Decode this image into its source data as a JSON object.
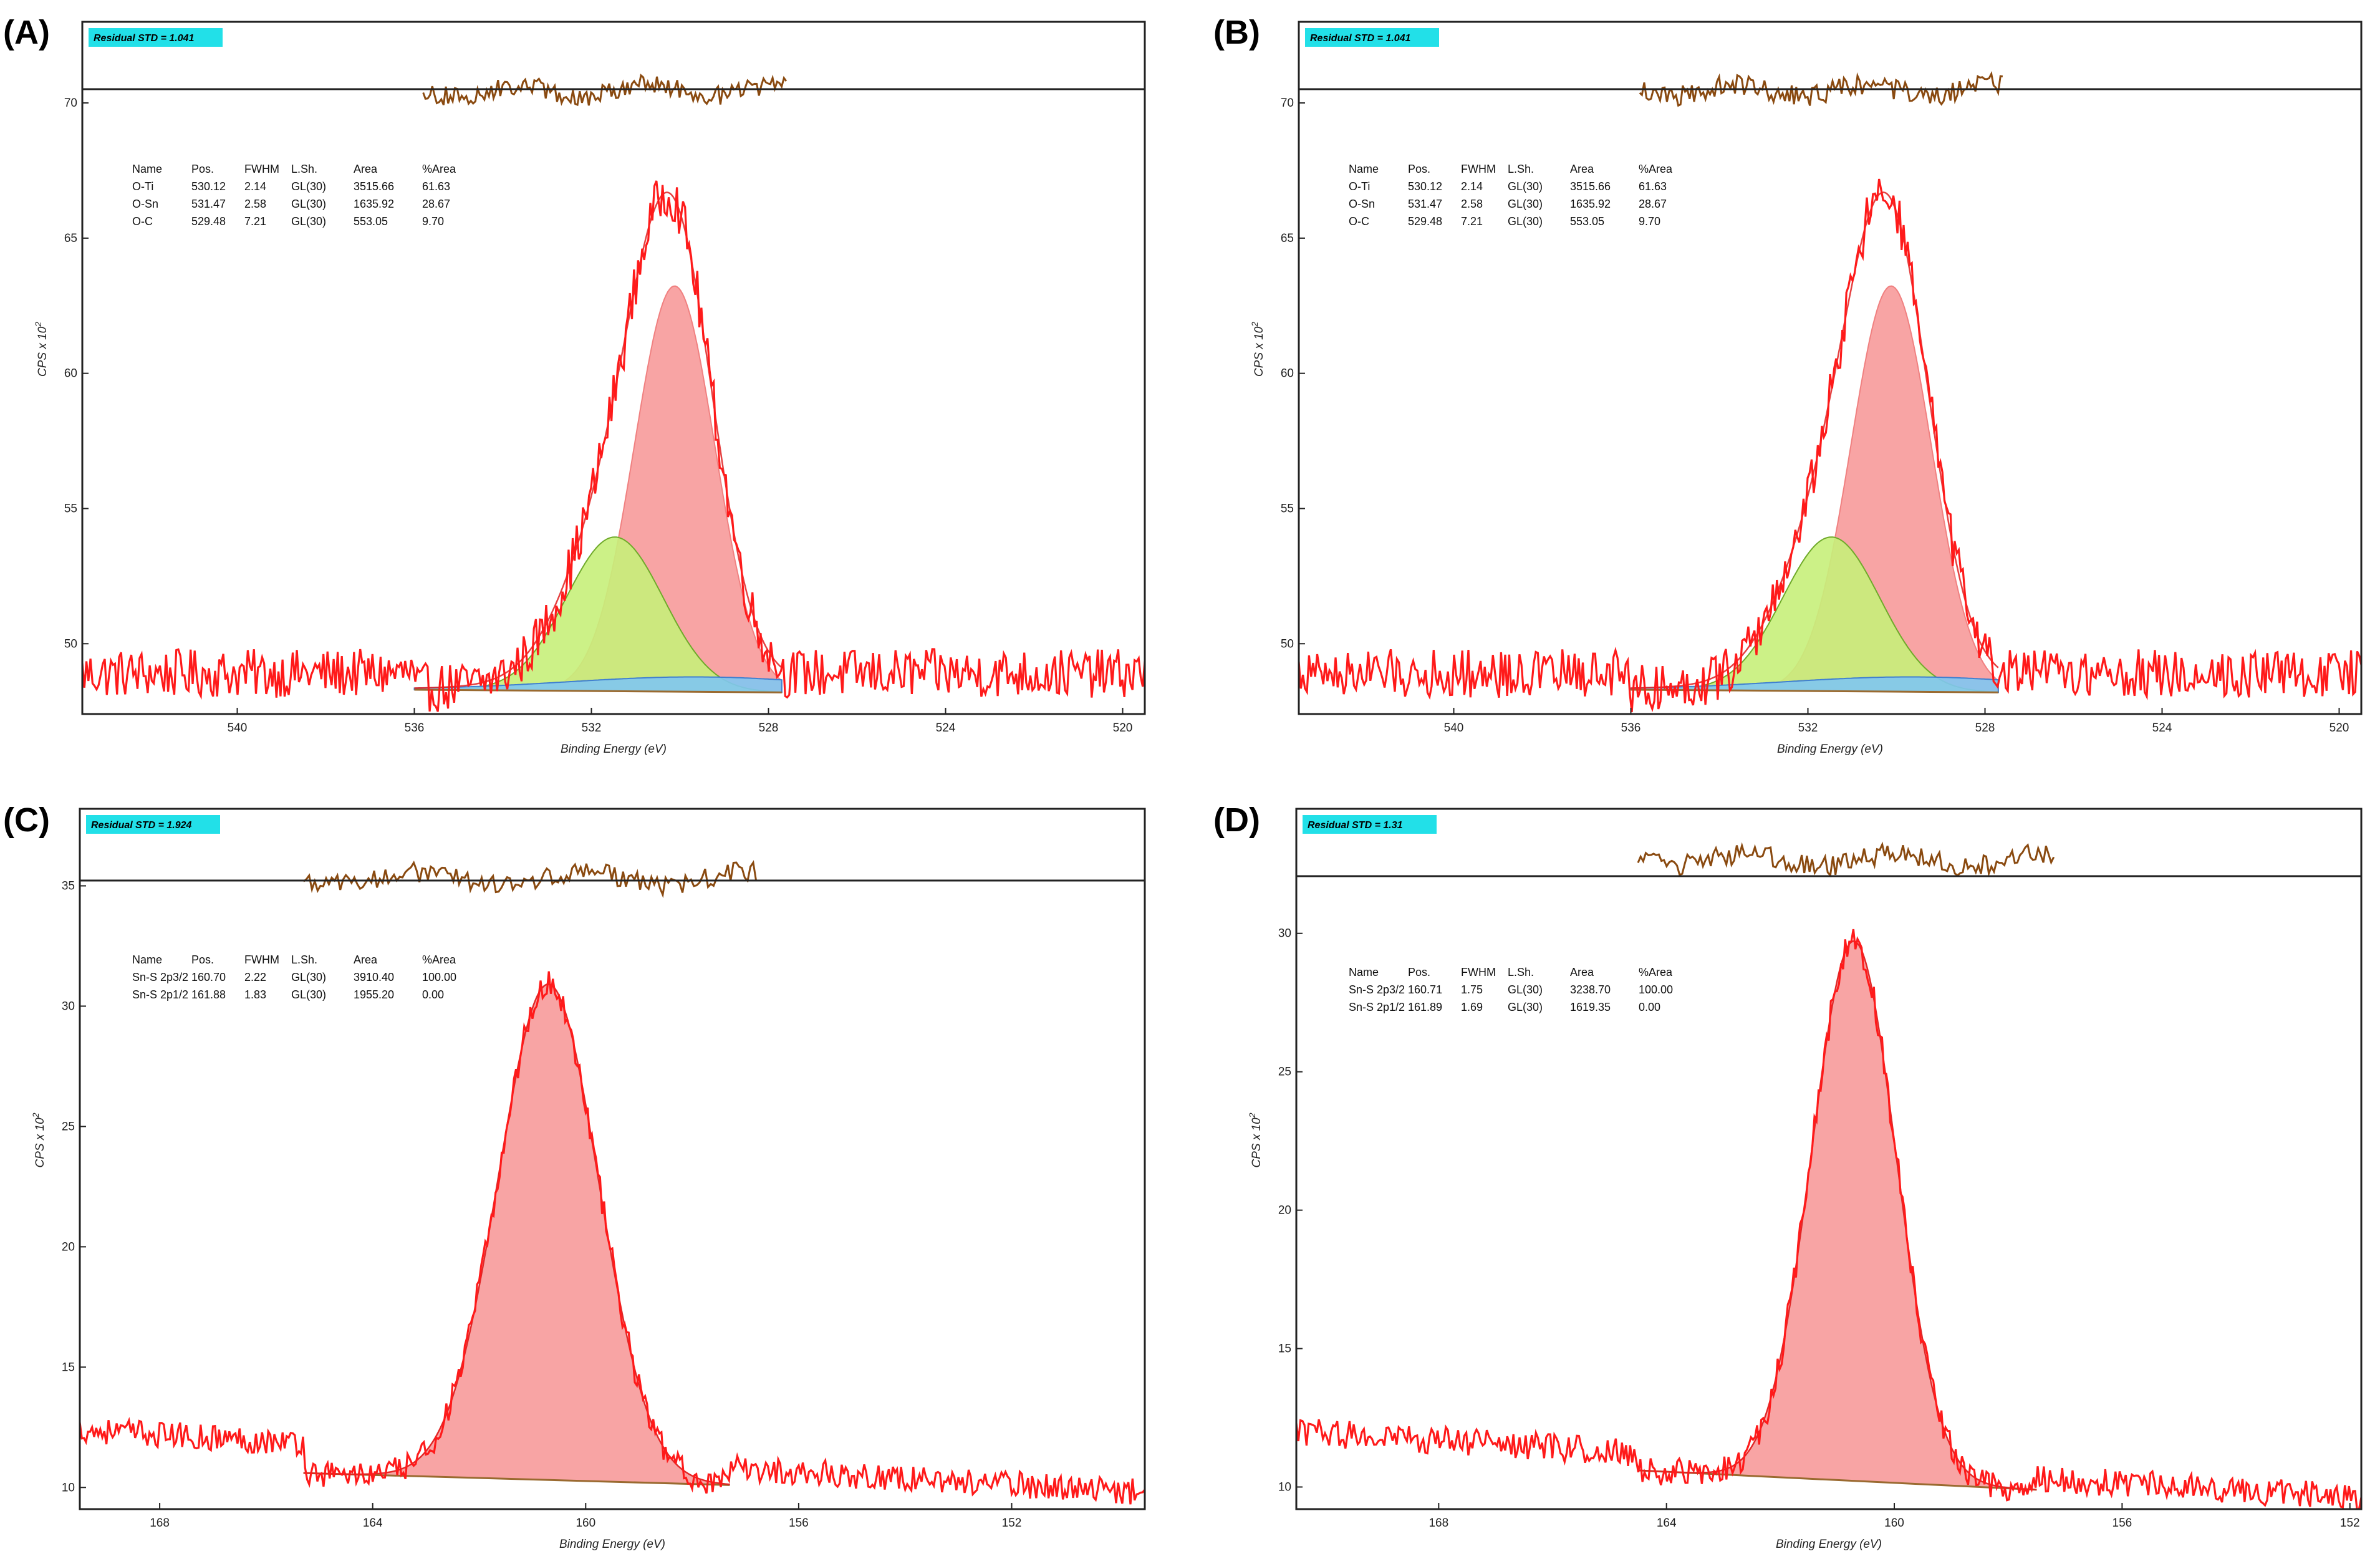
{
  "chart_data": [
    {
      "id": "A",
      "type": "line",
      "panel_label": "(A)",
      "title": "",
      "residual_label": "Residual STD = 1.041",
      "xlabel": "Binding Energy (eV)",
      "ylabel": "CPS x 10",
      "ylabel_exp": "2",
      "x_range": [
        543.5,
        519.5
      ],
      "y_range": [
        47.4,
        73
      ],
      "x_ticks": [
        540,
        536,
        532,
        528,
        524,
        520
      ],
      "y_ticks": [
        50,
        55,
        60,
        65,
        70
      ],
      "tick_labels_x": [
        "540",
        "536",
        "532",
        "528",
        "524",
        "520"
      ],
      "tick_labels_y": [
        "50",
        "55",
        "60",
        "65",
        "70"
      ],
      "residual_baseline": 70.2,
      "residual_x_range": [
        535.8,
        527.6
      ],
      "background": {
        "x_range": [
          536,
          527.7
        ],
        "y": [
          48.3,
          48.2
        ]
      },
      "noise_amplitude": 0.9,
      "raw_baseline": 48.9,
      "components": [
        {
          "name": "O-Ti",
          "pos": 530.12,
          "fwhm": 2.14,
          "height": 15.0,
          "color": "#f08080",
          "fill": "#f79a9a"
        },
        {
          "name": "O-Sn",
          "pos": 531.47,
          "fwhm": 2.58,
          "height": 5.7,
          "color": "#6faa2a",
          "fill": "#c6f07a"
        },
        {
          "name": "O-C",
          "pos": 529.48,
          "fwhm": 7.21,
          "height": 0.55,
          "color": "#3f7fd0",
          "fill": "#7fc7f2"
        }
      ],
      "legend": {
        "headers": [
          "Name",
          "Pos.",
          "FWHM",
          "L.Sh.",
          "Area",
          "%Area"
        ],
        "rows": [
          [
            "O-Ti",
            "530.12",
            "2.14",
            "GL(30)",
            "3515.66",
            "61.63"
          ],
          [
            "O-Sn",
            "531.47",
            "2.58",
            "GL(30)",
            "1635.92",
            "28.67"
          ],
          [
            "O-C",
            "529.48",
            "7.21",
            "GL(30)",
            "553.05",
            "9.70"
          ]
        ],
        "row_colors": [
          "#e05050",
          "#6aa820",
          "#3a78c8"
        ]
      }
    },
    {
      "id": "B",
      "type": "line",
      "panel_label": "(B)",
      "title": "",
      "residual_label": "Residual STD = 1.041",
      "xlabel": "Binding Energy (eV)",
      "ylabel": "CPS x 10",
      "ylabel_exp": "2",
      "x_range": [
        543.5,
        519.5
      ],
      "y_range": [
        47.4,
        73
      ],
      "x_ticks": [
        540,
        536,
        532,
        528,
        524,
        520
      ],
      "y_ticks": [
        50,
        55,
        60,
        65,
        70
      ],
      "tick_labels_x": [
        "540",
        "536",
        "532",
        "528",
        "524",
        "520"
      ],
      "tick_labels_y": [
        "50",
        "55",
        "60",
        "65",
        "70"
      ],
      "residual_baseline": 70.2,
      "residual_x_range": [
        535.8,
        527.6
      ],
      "background": {
        "x_range": [
          536,
          527.7
        ],
        "y": [
          48.3,
          48.2
        ]
      },
      "noise_amplitude": 0.9,
      "raw_baseline": 48.9,
      "components": [
        {
          "name": "O-Ti",
          "pos": 530.12,
          "fwhm": 2.14,
          "height": 15.0,
          "color": "#f08080",
          "fill": "#f79a9a"
        },
        {
          "name": "O-Sn",
          "pos": 531.47,
          "fwhm": 2.58,
          "height": 5.7,
          "color": "#6faa2a",
          "fill": "#c6f07a"
        },
        {
          "name": "O-C",
          "pos": 529.48,
          "fwhm": 7.21,
          "height": 0.55,
          "color": "#3f7fd0",
          "fill": "#7fc7f2"
        }
      ],
      "legend": {
        "headers": [
          "Name",
          "Pos.",
          "FWHM",
          "L.Sh.",
          "Area",
          "%Area"
        ],
        "rows": [
          [
            "O-Ti",
            "530.12",
            "2.14",
            "GL(30)",
            "3515.66",
            "61.63"
          ],
          [
            "O-Sn",
            "531.47",
            "2.58",
            "GL(30)",
            "1635.92",
            "28.67"
          ],
          [
            "O-C",
            "529.48",
            "7.21",
            "GL(30)",
            "553.05",
            "9.70"
          ]
        ],
        "row_colors": [
          "#e05050",
          "#6aa820",
          "#3a78c8"
        ]
      }
    },
    {
      "id": "C",
      "type": "line",
      "panel_label": "(C)",
      "title": "",
      "residual_label": "Residual STD = 1.924",
      "xlabel": "Binding Energy (eV)",
      "ylabel": "CPS x 10",
      "ylabel_exp": "2",
      "x_range": [
        169.5,
        149.5
      ],
      "y_range": [
        9.1,
        38.2
      ],
      "x_ticks": [
        168,
        164,
        160,
        156,
        152
      ],
      "y_ticks": [
        10,
        15,
        20,
        25,
        30,
        35
      ],
      "tick_labels_x": [
        "168",
        "164",
        "160",
        "156",
        "152"
      ],
      "tick_labels_y": [
        "10",
        "15",
        "20",
        "25",
        "30",
        "35"
      ],
      "residual_baseline": 35.0,
      "residual_x_range": [
        165.3,
        156.8
      ],
      "background": {
        "x_range": [
          165.3,
          157.3
        ],
        "y": [
          10.6,
          10.1
        ]
      },
      "noise_amplitude": 0.55,
      "raw_baseline_left": 12.4,
      "raw_baseline_right": 9.8,
      "components": [
        {
          "name": "Sn-S 2p3/2",
          "pos": 160.7,
          "fwhm": 2.22,
          "height": 20.6,
          "color": "#e05050",
          "fill": "#f79a9a"
        }
      ],
      "legend": {
        "headers": [
          "Name",
          "Pos.",
          "FWHM",
          "L.Sh.",
          "Area",
          "%Area"
        ],
        "rows": [
          [
            "Sn-S 2p3/2",
            "160.70",
            "2.22",
            "GL(30)",
            "3910.40",
            "100.00"
          ],
          [
            "Sn-S 2p1/2",
            "161.88",
            "1.83",
            "GL(30)",
            "1955.20",
            "0.00"
          ]
        ],
        "row_colors": [
          "#e05050",
          "#e05050"
        ]
      }
    },
    {
      "id": "D",
      "type": "line",
      "panel_label": "(D)",
      "title": "",
      "residual_label": "Residual STD = 1.31",
      "xlabel": "Binding Energy (eV)",
      "ylabel": "CPS x 10",
      "ylabel_exp": "2",
      "x_range": [
        170.5,
        151.8
      ],
      "y_range": [
        9.2,
        34.5
      ],
      "x_ticks": [
        168,
        164,
        160,
        156,
        152
      ],
      "y_ticks": [
        10,
        15,
        20,
        25,
        30
      ],
      "tick_labels_x": [
        "168",
        "164",
        "160",
        "156",
        "152"
      ],
      "tick_labels_y": [
        "10",
        "15",
        "20",
        "25",
        "30"
      ],
      "residual_baseline": 32.4,
      "residual_x_range": [
        164.5,
        157.2
      ],
      "background": {
        "x_range": [
          164.5,
          157.5
        ],
        "y": [
          10.6,
          9.9
        ]
      },
      "noise_amplitude": 0.5,
      "raw_baseline_left": 12.0,
      "raw_baseline_right": 9.6,
      "components": [
        {
          "name": "Sn-S 2p3/2",
          "pos": 160.71,
          "fwhm": 1.75,
          "height": 19.5,
          "color": "#e05050",
          "fill": "#f79a9a"
        }
      ],
      "legend": {
        "headers": [
          "Name",
          "Pos.",
          "FWHM",
          "L.Sh.",
          "Area",
          "%Area"
        ],
        "rows": [
          [
            "Sn-S 2p3/2",
            "160.71",
            "1.75",
            "GL(30)",
            "3238.70",
            "100.00"
          ],
          [
            "Sn-S 2p1/2",
            "161.89",
            "1.69",
            "GL(30)",
            "1619.35",
            "0.00"
          ]
        ],
        "row_colors": [
          "#e05050",
          "#e05050"
        ]
      }
    }
  ],
  "colors": {
    "raw": "#ff1a1a",
    "residual": "#8a4a10",
    "badge": "#22e0e8",
    "envelope": "#e02020",
    "background_line": "#9a6a30"
  }
}
